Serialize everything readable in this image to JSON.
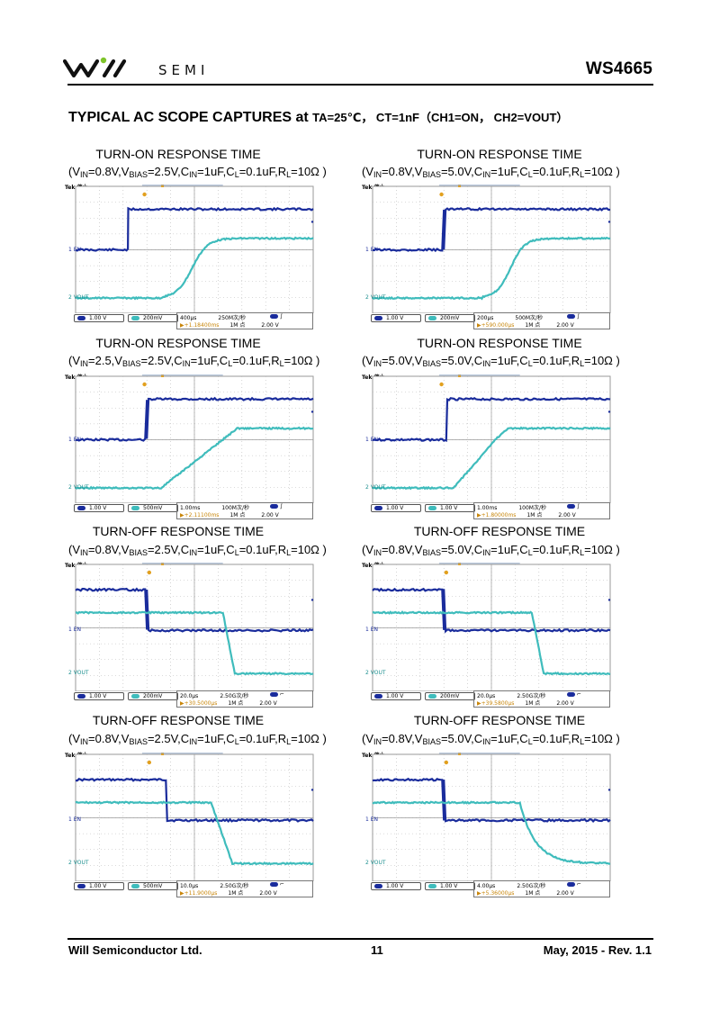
{
  "header": {
    "company_mark": "SEMI",
    "doc_code": "WS4665"
  },
  "section": {
    "title": "TYPICAL AC SCOPE CAPTURES at",
    "conditions": "TA=25℃， CT=1nF（CH1=ON， CH2=VOUT）"
  },
  "captures": [
    {
      "title": "TURN-ON RESPONSE TIME",
      "params": [
        {
          "t": "V",
          "s": "IN"
        },
        {
          "t": "=0.8V,V",
          "s": "BIAS"
        },
        {
          "t": "=2.5V,C",
          "s": "IN"
        },
        {
          "t": "=1uF,C",
          "s": "L"
        },
        {
          "t": "=0.1uF,R",
          "s": "L"
        },
        {
          "t": "=10Ω",
          "s": ""
        }
      ],
      "scope": {
        "tek": "Tek 停止",
        "ch1_scale": "1.00 V",
        "ch2_scale": "200mV",
        "timebase": "400μs",
        "sample": "250M次/秒",
        "record": "1M 点",
        "trig_level": "2.00 V",
        "trig_pos": "▶+1.18400ms",
        "ch1_label": "EN",
        "ch2_label": "VOUT",
        "edge": "rise"
      },
      "waveform": {
        "type": "on",
        "on_step": 0.22,
        "out_start": 0.36,
        "out_end": 0.62,
        "curve": "s"
      }
    },
    {
      "title": "TURN-ON RESPONSE TIME",
      "params": [
        {
          "t": "V",
          "s": "IN"
        },
        {
          "t": "=0.8V,V",
          "s": "BIAS"
        },
        {
          "t": "=5.0V,C",
          "s": "IN"
        },
        {
          "t": "=1uF,C",
          "s": "L"
        },
        {
          "t": "=0.1uF,R",
          "s": "L"
        },
        {
          "t": "=10Ω",
          "s": ""
        }
      ],
      "scope": {
        "tek": "Tek 停止",
        "ch1_scale": "1.00 V",
        "ch2_scale": "200mV",
        "timebase": "200μs",
        "sample": "500M次/秒",
        "record": "1M 点",
        "trig_level": "2.00 V",
        "trig_pos": "▶+590.000μs",
        "ch1_label": "EN",
        "ch2_label": "VOUT",
        "edge": "rise"
      },
      "waveform": {
        "type": "on",
        "on_step": 0.3,
        "out_start": 0.46,
        "out_end": 0.7,
        "curve": "s"
      }
    },
    {
      "title": "TURN-ON RESPONSE TIME",
      "params": [
        {
          "t": "V",
          "s": "IN"
        },
        {
          "t": "=2.5,V",
          "s": "BIAS"
        },
        {
          "t": "=2.5V,C",
          "s": "IN"
        },
        {
          "t": "=1uF,C",
          "s": "L"
        },
        {
          "t": "=0.1uF,R",
          "s": "L"
        },
        {
          "t": "=10Ω",
          "s": ""
        }
      ],
      "scope": {
        "tek": "Tek 停止",
        "ch1_scale": "1.00 V",
        "ch2_scale": "500mV",
        "timebase": "1.00ms",
        "sample": "100M次/秒",
        "record": "1M 点",
        "trig_level": "2.00 V",
        "trig_pos": "▶+2.11100ms",
        "ch1_label": "EN",
        "ch2_label": "VOUT",
        "edge": "rise"
      },
      "waveform": {
        "type": "on",
        "on_step": 0.3,
        "out_start": 0.36,
        "out_end": 0.68,
        "curve": "lin"
      }
    },
    {
      "title": "TURN-ON RESPONSE TIME",
      "params": [
        {
          "t": "V",
          "s": "IN"
        },
        {
          "t": "=5.0V,V",
          "s": "BIAS"
        },
        {
          "t": "=5.0V,C",
          "s": "IN"
        },
        {
          "t": "=1uF,C",
          "s": "L"
        },
        {
          "t": "=0.1uF,R",
          "s": "L"
        },
        {
          "t": "=10Ω",
          "s": ""
        }
      ],
      "scope": {
        "tek": "Tek 停止",
        "ch1_scale": "1.00 V",
        "ch2_scale": "1.00 V",
        "timebase": "1.00ms",
        "sample": "100M次/秒",
        "record": "1M 点",
        "trig_level": "2.00 V",
        "trig_pos": "▶+1.80000ms",
        "ch1_label": "EN",
        "ch2_label": "VOUT",
        "edge": "rise"
      },
      "waveform": {
        "type": "on",
        "on_step": 0.31,
        "out_start": 0.34,
        "out_end": 0.57,
        "curve": "fast"
      }
    },
    {
      "title": "TURN-OFF RESPONSE TIME",
      "params": [
        {
          "t": "V",
          "s": "IN"
        },
        {
          "t": "=0.8V,V",
          "s": "BIAS"
        },
        {
          "t": "=2.5V,C",
          "s": "IN"
        },
        {
          "t": "=1uF,C",
          "s": "L"
        },
        {
          "t": "=0.1uF,R",
          "s": "L"
        },
        {
          "t": "=10Ω",
          "s": ""
        }
      ],
      "scope": {
        "tek": "Tek 停止",
        "ch1_scale": "1.00 V",
        "ch2_scale": "200mV",
        "timebase": "20.0μs",
        "sample": "2.50G次/秒",
        "record": "1M 点",
        "trig_level": "2.00 V",
        "trig_pos": "▶+30.5000μs",
        "ch1_label": "EN",
        "ch2_label": "VOUT",
        "edge": "fall"
      },
      "waveform": {
        "type": "off",
        "off_step": 0.3,
        "out_start": 0.62,
        "out_end": 0.67,
        "curve": "lin"
      }
    },
    {
      "title": "TURN-OFF RESPONSE TIME",
      "params": [
        {
          "t": "V",
          "s": "IN"
        },
        {
          "t": "=0.8V,V",
          "s": "BIAS"
        },
        {
          "t": "=5.0V,C",
          "s": "IN"
        },
        {
          "t": "=1uF,C",
          "s": "L"
        },
        {
          "t": "=0.1uF,R",
          "s": "L"
        },
        {
          "t": "=10Ω",
          "s": ""
        }
      ],
      "scope": {
        "tek": "Tek 停止",
        "ch1_scale": "1.00 V",
        "ch2_scale": "200mV",
        "timebase": "20.0μs",
        "sample": "2.50G次/秒",
        "record": "1M 点",
        "trig_level": "2.00 V",
        "trig_pos": "▶+39.5800μs",
        "ch1_label": "EN",
        "ch2_label": "VOUT",
        "edge": "fall"
      },
      "waveform": {
        "type": "off",
        "off_step": 0.3,
        "out_start": 0.67,
        "out_end": 0.72,
        "curve": "lin"
      }
    },
    {
      "title": "TURN-OFF RESPONSE TIME",
      "params": [
        {
          "t": "V",
          "s": "IN"
        },
        {
          "t": "=0.8V,V",
          "s": "BIAS"
        },
        {
          "t": "=2.5V,C",
          "s": "IN"
        },
        {
          "t": "=1uF,C",
          "s": "L"
        },
        {
          "t": "=0.1uF,R",
          "s": "L"
        },
        {
          "t": "=10Ω",
          "s": ""
        }
      ],
      "scope": {
        "tek": "Tek 停止",
        "ch1_scale": "1.00 V",
        "ch2_scale": "500mV",
        "timebase": "10.0μs",
        "sample": "2.50G次/秒",
        "record": "1M 点",
        "trig_level": "2.00 V",
        "trig_pos": "▶+11.9000μs",
        "ch1_label": "EN",
        "ch2_label": "VOUT",
        "edge": "fall"
      },
      "waveform": {
        "type": "off",
        "off_step": 0.38,
        "out_start": 0.57,
        "out_end": 0.66,
        "curve": "lin"
      }
    },
    {
      "title": "TURN-OFF RESPONSE TIME",
      "params": [
        {
          "t": "V",
          "s": "IN"
        },
        {
          "t": "=0.8V,V",
          "s": "BIAS"
        },
        {
          "t": "=5.0V,C",
          "s": "IN"
        },
        {
          "t": "=1uF,C",
          "s": "L"
        },
        {
          "t": "=0.1uF,R",
          "s": "L"
        },
        {
          "t": "=10Ω",
          "s": ""
        }
      ],
      "scope": {
        "tek": "Tek 停止",
        "ch1_scale": "1.00 V",
        "ch2_scale": "1.00 V",
        "timebase": "4.00μs",
        "sample": "2.50G次/秒",
        "record": "1M 点",
        "trig_level": "2.00 V",
        "trig_pos": "▶+5.36000μs",
        "ch1_label": "EN",
        "ch2_label": "VOUT",
        "edge": "fall"
      },
      "waveform": {
        "type": "off",
        "off_step": 0.3,
        "out_start": 0.62,
        "out_end": 0.88,
        "curve": "exp"
      }
    }
  ],
  "footer": {
    "company": "Will Semiconductor Ltd.",
    "page": "11",
    "date_rev": "May, 2015 - Rev. 1.1"
  },
  "colors": {
    "ch1": "#1a2c9c",
    "ch2": "#3fbcbc",
    "grid": "#b8b8b8",
    "logo_green": "#7ec42a"
  }
}
